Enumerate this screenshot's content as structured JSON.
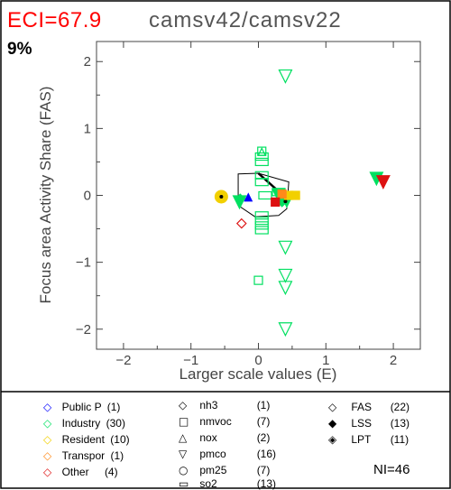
{
  "header": {
    "eci": "ECI=67.9",
    "title": "camsv42/camsv22",
    "percent": "9%"
  },
  "colors": {
    "eci": "#ff0000",
    "title": "#555555",
    "public_p": "#0000ff",
    "industry": "#00e060",
    "resident": "#f2d000",
    "transpor": "#ff8a1a",
    "other": "#dd1111"
  },
  "chart_data": {
    "type": "scatter",
    "xlabel": "Larger scale values (E)",
    "ylabel": "Focus area Activity Share (FAS)",
    "xlim": [
      -2.4,
      2.4
    ],
    "ylim": [
      -2.3,
      2.3
    ],
    "xticks": [
      -2,
      -1,
      0,
      1,
      2
    ],
    "yticks": [
      -2,
      -1,
      0,
      1,
      2
    ],
    "grid": false,
    "legend_position": "bottom",
    "points": [
      {
        "x": 0.4,
        "y": 1.78,
        "shape": "tri-down",
        "fill": "none",
        "color": "industry"
      },
      {
        "x": 0.05,
        "y": 0.65,
        "shape": "tri-up",
        "fill": "none",
        "color": "industry"
      },
      {
        "x": 0.05,
        "y": 0.66,
        "shape": "square",
        "fill": "none",
        "color": "industry"
      },
      {
        "x": 0.05,
        "y": 0.58,
        "shape": "rect",
        "fill": "none",
        "color": "industry"
      },
      {
        "x": 0.05,
        "y": 0.5,
        "shape": "rect",
        "fill": "none",
        "color": "industry"
      },
      {
        "x": 0.05,
        "y": 0.3,
        "shape": "rect",
        "fill": "none",
        "color": "industry"
      },
      {
        "x": 0.05,
        "y": 0.2,
        "shape": "rect",
        "fill": "none",
        "color": "industry"
      },
      {
        "x": 0.3,
        "y": 0.05,
        "shape": "rect",
        "fill": "none",
        "color": "industry"
      },
      {
        "x": 0.1,
        "y": 0.0,
        "shape": "rect",
        "fill": "none",
        "color": "industry"
      },
      {
        "x": 0.05,
        "y": -0.3,
        "shape": "rect",
        "fill": "none",
        "color": "industry"
      },
      {
        "x": 0.05,
        "y": -0.38,
        "shape": "rect",
        "fill": "none",
        "color": "industry"
      },
      {
        "x": 0.05,
        "y": -0.45,
        "shape": "rect",
        "fill": "none",
        "color": "industry"
      },
      {
        "x": 0.05,
        "y": -0.52,
        "shape": "rect",
        "fill": "none",
        "color": "industry"
      },
      {
        "x": 0.0,
        "y": -1.27,
        "shape": "square",
        "fill": "none",
        "color": "industry"
      },
      {
        "x": 0.4,
        "y": -0.78,
        "shape": "tri-down",
        "fill": "none",
        "color": "industry"
      },
      {
        "x": 0.4,
        "y": -1.2,
        "shape": "tri-down",
        "fill": "none",
        "color": "industry"
      },
      {
        "x": 0.4,
        "y": -1.38,
        "shape": "tri-down",
        "fill": "none",
        "color": "industry"
      },
      {
        "x": 0.4,
        "y": -2.0,
        "shape": "tri-down",
        "fill": "none",
        "color": "industry"
      },
      {
        "x": 0.3,
        "y": 0.0,
        "shape": "tri-down",
        "fill": "filled",
        "color": "industry"
      },
      {
        "x": 0.42,
        "y": -0.05,
        "shape": "tri-down",
        "fill": "filled",
        "color": "industry"
      },
      {
        "x": 0.35,
        "y": -0.1,
        "shape": "diamond",
        "fill": "filled",
        "color": "industry"
      },
      {
        "x": 0.42,
        "y": -0.08,
        "shape": "tri-down",
        "fill": "filled",
        "color": "industry"
      },
      {
        "x": -0.28,
        "y": -0.1,
        "shape": "tri-down",
        "fill": "filled",
        "color": "industry"
      },
      {
        "x": -0.27,
        "y": -0.05,
        "shape": "diamond",
        "fill": "filled",
        "color": "industry"
      },
      {
        "x": 1.75,
        "y": 0.25,
        "shape": "tri-down",
        "fill": "filled",
        "color": "industry"
      },
      {
        "x": 0.4,
        "y": -0.09,
        "shape": "dot",
        "fill": "filled",
        "color": "black"
      },
      {
        "x": -0.55,
        "y": -0.02,
        "shape": "circle",
        "fill": "filled",
        "color": "resident"
      },
      {
        "x": -0.55,
        "y": -0.02,
        "shape": "dot",
        "fill": "filled",
        "color": "black"
      },
      {
        "x": 0.55,
        "y": 0.0,
        "shape": "square",
        "fill": "filled",
        "color": "resident"
      },
      {
        "x": 0.45,
        "y": 0.0,
        "shape": "square",
        "fill": "filled",
        "color": "resident"
      },
      {
        "x": 0.35,
        "y": 0.02,
        "shape": "square",
        "fill": "filled",
        "color": "transpor"
      },
      {
        "x": 0.25,
        "y": -0.1,
        "shape": "square",
        "fill": "filled",
        "color": "other"
      },
      {
        "x": 1.85,
        "y": 0.2,
        "shape": "tri-down",
        "fill": "filled",
        "color": "other"
      },
      {
        "x": -0.25,
        "y": -0.42,
        "shape": "diamond",
        "fill": "none",
        "color": "other"
      },
      {
        "x": -0.15,
        "y": -0.03,
        "shape": "tri-up",
        "fill": "filled",
        "color": "public_p"
      }
    ],
    "hull": [
      [
        -0.3,
        0.32
      ],
      [
        0.0,
        0.33
      ],
      [
        0.45,
        0.2
      ],
      [
        0.42,
        -0.2
      ],
      [
        0.3,
        -0.3
      ],
      [
        -0.05,
        -0.32
      ],
      [
        -0.3,
        -0.15
      ]
    ],
    "hull_line": [
      [
        0.0,
        0.33
      ],
      [
        0.42,
        -0.05
      ]
    ]
  },
  "legend": {
    "sectors": [
      {
        "label": "Public P",
        "count": "(1)",
        "color": "public_p"
      },
      {
        "label": "Industry",
        "count": "(30)",
        "color": "industry"
      },
      {
        "label": "Resident",
        "count": "(10)",
        "color": "resident"
      },
      {
        "label": "Transpor",
        "count": "(1)",
        "color": "transpor"
      },
      {
        "label": "Other",
        "count": "(4)",
        "color": "other"
      }
    ],
    "species": [
      {
        "symbol": "◇",
        "label": "nh3",
        "count": "(1)"
      },
      {
        "symbol": "□",
        "label": "nmvoc",
        "count": "(7)"
      },
      {
        "symbol": "△",
        "label": "nox",
        "count": "(2)"
      },
      {
        "symbol": "▽",
        "label": "pmco",
        "count": "(16)"
      },
      {
        "symbol": "○",
        "label": "pm25",
        "count": "(7)"
      },
      {
        "symbol": "▭",
        "label": "so2",
        "count": "(13)"
      }
    ],
    "types": [
      {
        "symbol": "◇",
        "label": "FAS",
        "count": "(22)"
      },
      {
        "symbol": "◆",
        "label": "LSS",
        "count": "(13)"
      },
      {
        "symbol": "◈",
        "label": "LPT",
        "count": "(11)"
      }
    ],
    "ni": "NI=46"
  }
}
